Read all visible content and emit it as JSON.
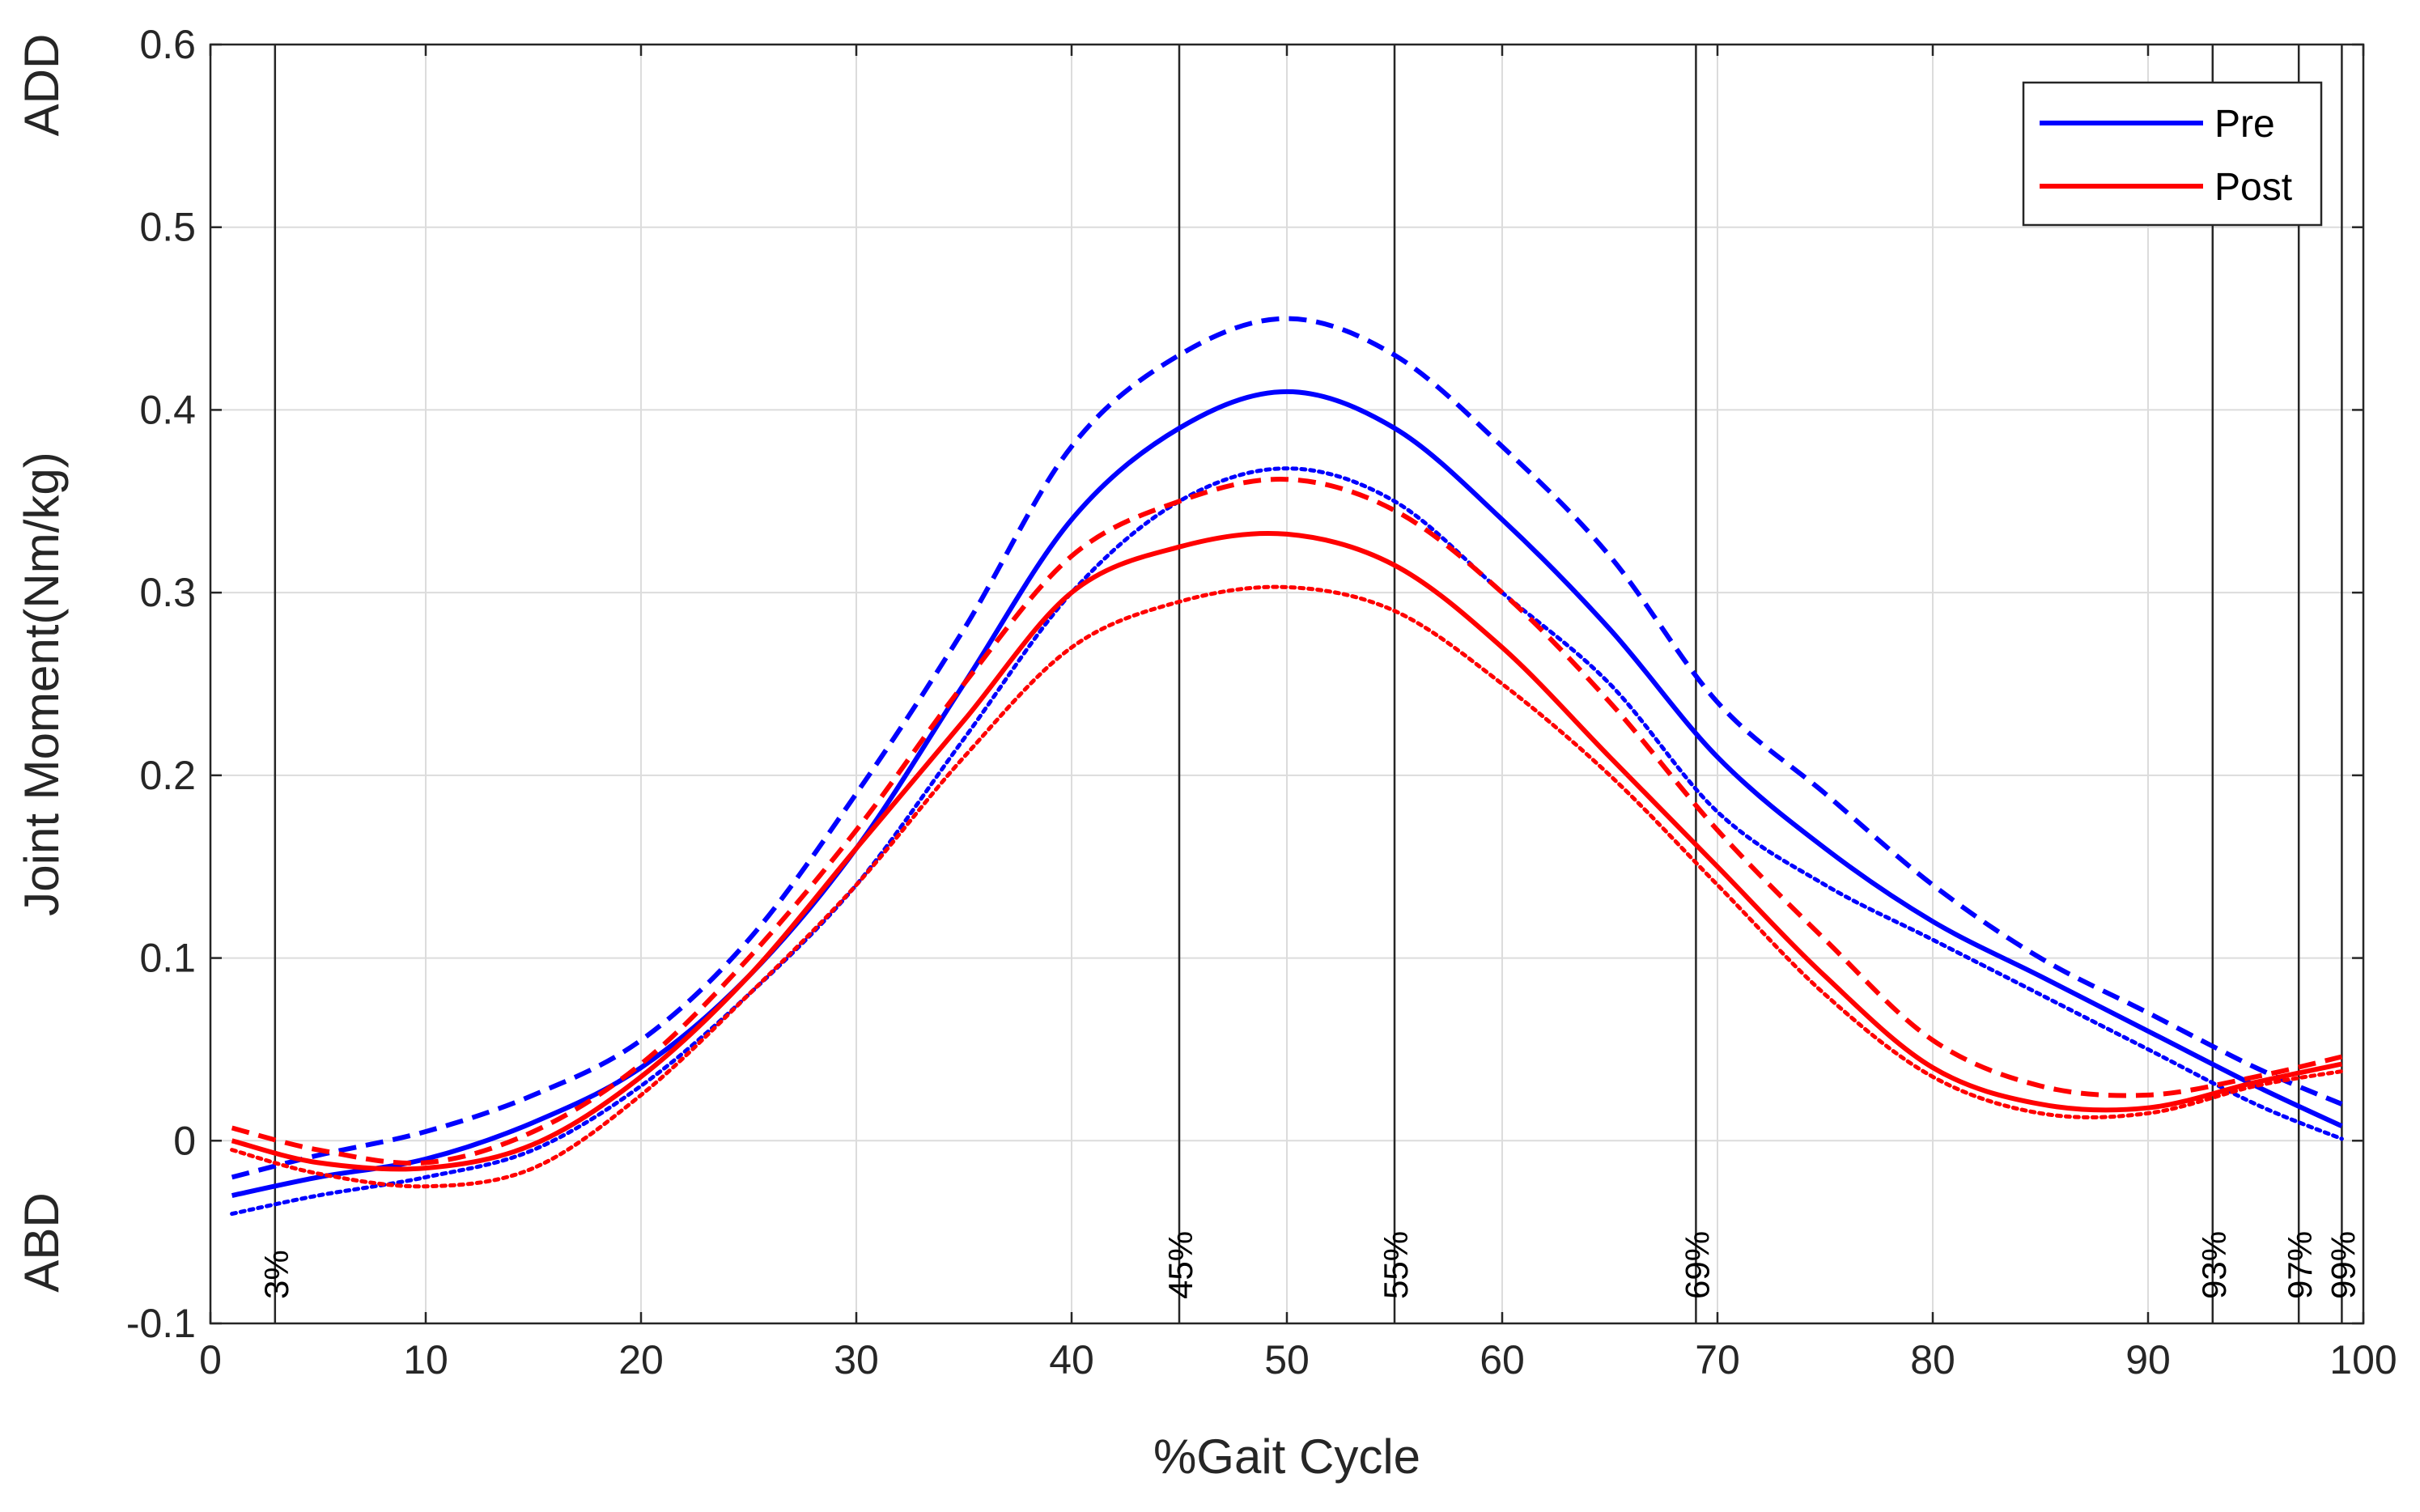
{
  "chart_data": {
    "type": "line",
    "title": "",
    "xlabel": "%Gait Cycle",
    "ylabel": "Joint Moment(Nm/kg)",
    "xlim": [
      0,
      100
    ],
    "ylim": [
      -0.1,
      0.6
    ],
    "xticks": [
      "0",
      "10",
      "20",
      "30",
      "40",
      "50",
      "60",
      "70",
      "80",
      "90",
      "100"
    ],
    "yticks": [
      "-0.1",
      "0",
      "0.1",
      "0.2",
      "0.3",
      "0.4",
      "0.5",
      "0.6"
    ],
    "grid": true,
    "side_labels": {
      "top": "ADD",
      "bottom": "ABD"
    },
    "colors": {
      "pre": "#0000ff",
      "post": "#ff0000"
    },
    "legend": {
      "position": "top-right",
      "entries": [
        {
          "name": "Pre",
          "color": "#0000ff"
        },
        {
          "name": "Post",
          "color": "#ff0000"
        }
      ]
    },
    "vertical_lines": [
      {
        "x": 3,
        "label": "3%"
      },
      {
        "x": 45,
        "label": "45%"
      },
      {
        "x": 55,
        "label": "55%"
      },
      {
        "x": 69,
        "label": "69%"
      },
      {
        "x": 93,
        "label": "93%"
      },
      {
        "x": 97,
        "label": "97%"
      },
      {
        "x": 99,
        "label": "99%"
      }
    ],
    "x": [
      1,
      5,
      10,
      15,
      20,
      25,
      30,
      35,
      40,
      45,
      50,
      55,
      60,
      65,
      70,
      75,
      80,
      85,
      90,
      95,
      99
    ],
    "series": [
      {
        "name": "Pre mean",
        "group": "Pre",
        "style": "solid",
        "color": "#0000ff",
        "values": [
          -0.03,
          -0.02,
          -0.01,
          0.01,
          0.04,
          0.09,
          0.16,
          0.25,
          0.34,
          0.39,
          0.41,
          0.39,
          0.34,
          0.28,
          0.21,
          0.16,
          0.12,
          0.09,
          0.06,
          0.03,
          0.008
        ]
      },
      {
        "name": "Pre +SD",
        "group": "Pre",
        "style": "dashed",
        "color": "#0000ff",
        "values": [
          -0.02,
          -0.008,
          0.005,
          0.025,
          0.055,
          0.11,
          0.19,
          0.28,
          0.38,
          0.43,
          0.45,
          0.43,
          0.38,
          0.32,
          0.24,
          0.19,
          0.14,
          0.1,
          0.07,
          0.04,
          0.02
        ]
      },
      {
        "name": "Pre -SD",
        "group": "Pre",
        "style": "dotted",
        "color": "#0000ff",
        "values": [
          -0.04,
          -0.03,
          -0.02,
          -0.005,
          0.03,
          0.08,
          0.14,
          0.22,
          0.3,
          0.35,
          0.368,
          0.35,
          0.3,
          0.25,
          0.18,
          0.14,
          0.11,
          0.08,
          0.05,
          0.02,
          0.001
        ]
      },
      {
        "name": "Post mean",
        "group": "Post",
        "style": "solid",
        "color": "#ff0000",
        "values": [
          0.0,
          -0.012,
          -0.015,
          -0.002,
          0.035,
          0.09,
          0.16,
          0.23,
          0.3,
          0.325,
          0.332,
          0.315,
          0.27,
          0.21,
          0.15,
          0.09,
          0.04,
          0.02,
          0.018,
          0.032,
          0.042
        ]
      },
      {
        "name": "Post +SD",
        "group": "Post",
        "style": "dashed",
        "color": "#ff0000",
        "values": [
          0.007,
          -0.005,
          -0.012,
          0.005,
          0.042,
          0.1,
          0.17,
          0.25,
          0.32,
          0.35,
          0.362,
          0.345,
          0.3,
          0.24,
          0.17,
          0.11,
          0.055,
          0.03,
          0.025,
          0.035,
          0.046
        ]
      },
      {
        "name": "Post -SD",
        "group": "Post",
        "style": "dotted",
        "color": "#ff0000",
        "values": [
          -0.005,
          -0.018,
          -0.025,
          -0.015,
          0.025,
          0.08,
          0.14,
          0.21,
          0.27,
          0.295,
          0.303,
          0.29,
          0.25,
          0.2,
          0.14,
          0.08,
          0.035,
          0.015,
          0.015,
          0.03,
          0.038
        ]
      }
    ]
  }
}
